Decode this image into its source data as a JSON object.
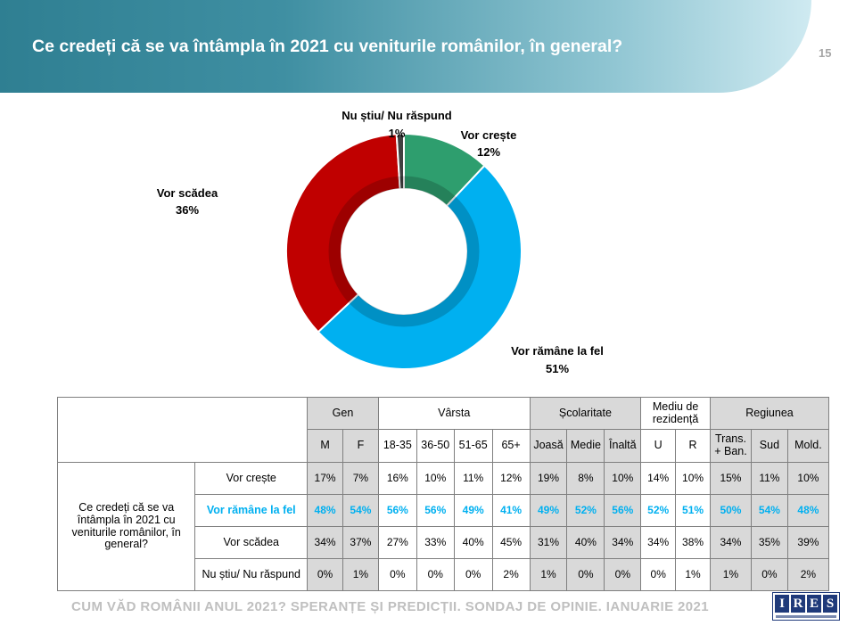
{
  "header": {
    "title": "Ce credeți că se va întâmpla în 2021 cu veniturile românilor, în general?",
    "page_number": "15"
  },
  "chart_data": {
    "type": "pie",
    "donut": true,
    "categories": [
      "Vor crește",
      "Vor rămâne la fel",
      "Vor scădea",
      "Nu știu/ Nu răspund"
    ],
    "values": [
      12,
      51,
      36,
      1
    ],
    "value_labels": [
      "12%",
      "51%",
      "36%",
      "1%"
    ],
    "colors": [
      "#2e9e6e",
      "#00b0f0",
      "#c00000",
      "#404040"
    ]
  },
  "table": {
    "groups": [
      "Gen",
      "Vârsta",
      "Școlaritate",
      "Mediu de rezidență",
      "Regiunea"
    ],
    "columns": [
      "M",
      "F",
      "18-35",
      "36-50",
      "51-65",
      "65+",
      "Joasă",
      "Medie",
      "Înaltă",
      "U",
      "R",
      "Trans. + Ban.",
      "Sud",
      "Mold."
    ],
    "question": "Ce credeți că se va întâmpla în 2021 cu veniturile românilor, în general?",
    "rows": [
      {
        "label": "Vor crește",
        "values": [
          "17%",
          "7%",
          "16%",
          "10%",
          "11%",
          "12%",
          "19%",
          "8%",
          "10%",
          "14%",
          "10%",
          "15%",
          "11%",
          "10%"
        ]
      },
      {
        "label": "Vor rămâne la fel",
        "values": [
          "48%",
          "54%",
          "56%",
          "56%",
          "49%",
          "41%",
          "49%",
          "52%",
          "56%",
          "52%",
          "51%",
          "50%",
          "54%",
          "48%"
        ]
      },
      {
        "label": "Vor scădea",
        "values": [
          "34%",
          "37%",
          "27%",
          "33%",
          "40%",
          "45%",
          "31%",
          "40%",
          "34%",
          "34%",
          "38%",
          "34%",
          "35%",
          "39%"
        ]
      },
      {
        "label": "Nu știu/ Nu răspund",
        "values": [
          "0%",
          "1%",
          "0%",
          "0%",
          "0%",
          "2%",
          "1%",
          "0%",
          "0%",
          "0%",
          "1%",
          "1%",
          "0%",
          "2%"
        ]
      }
    ],
    "highlight_color": "#00b0f0"
  },
  "footer": {
    "text": "CUM VĂD ROMÂNII ANUL 2021? SPERANȚE ȘI PREDICȚII. SONDAJ DE OPINIE. IANUARIE 2021",
    "logo_letters": [
      "I",
      "R",
      "E",
      "S"
    ]
  }
}
